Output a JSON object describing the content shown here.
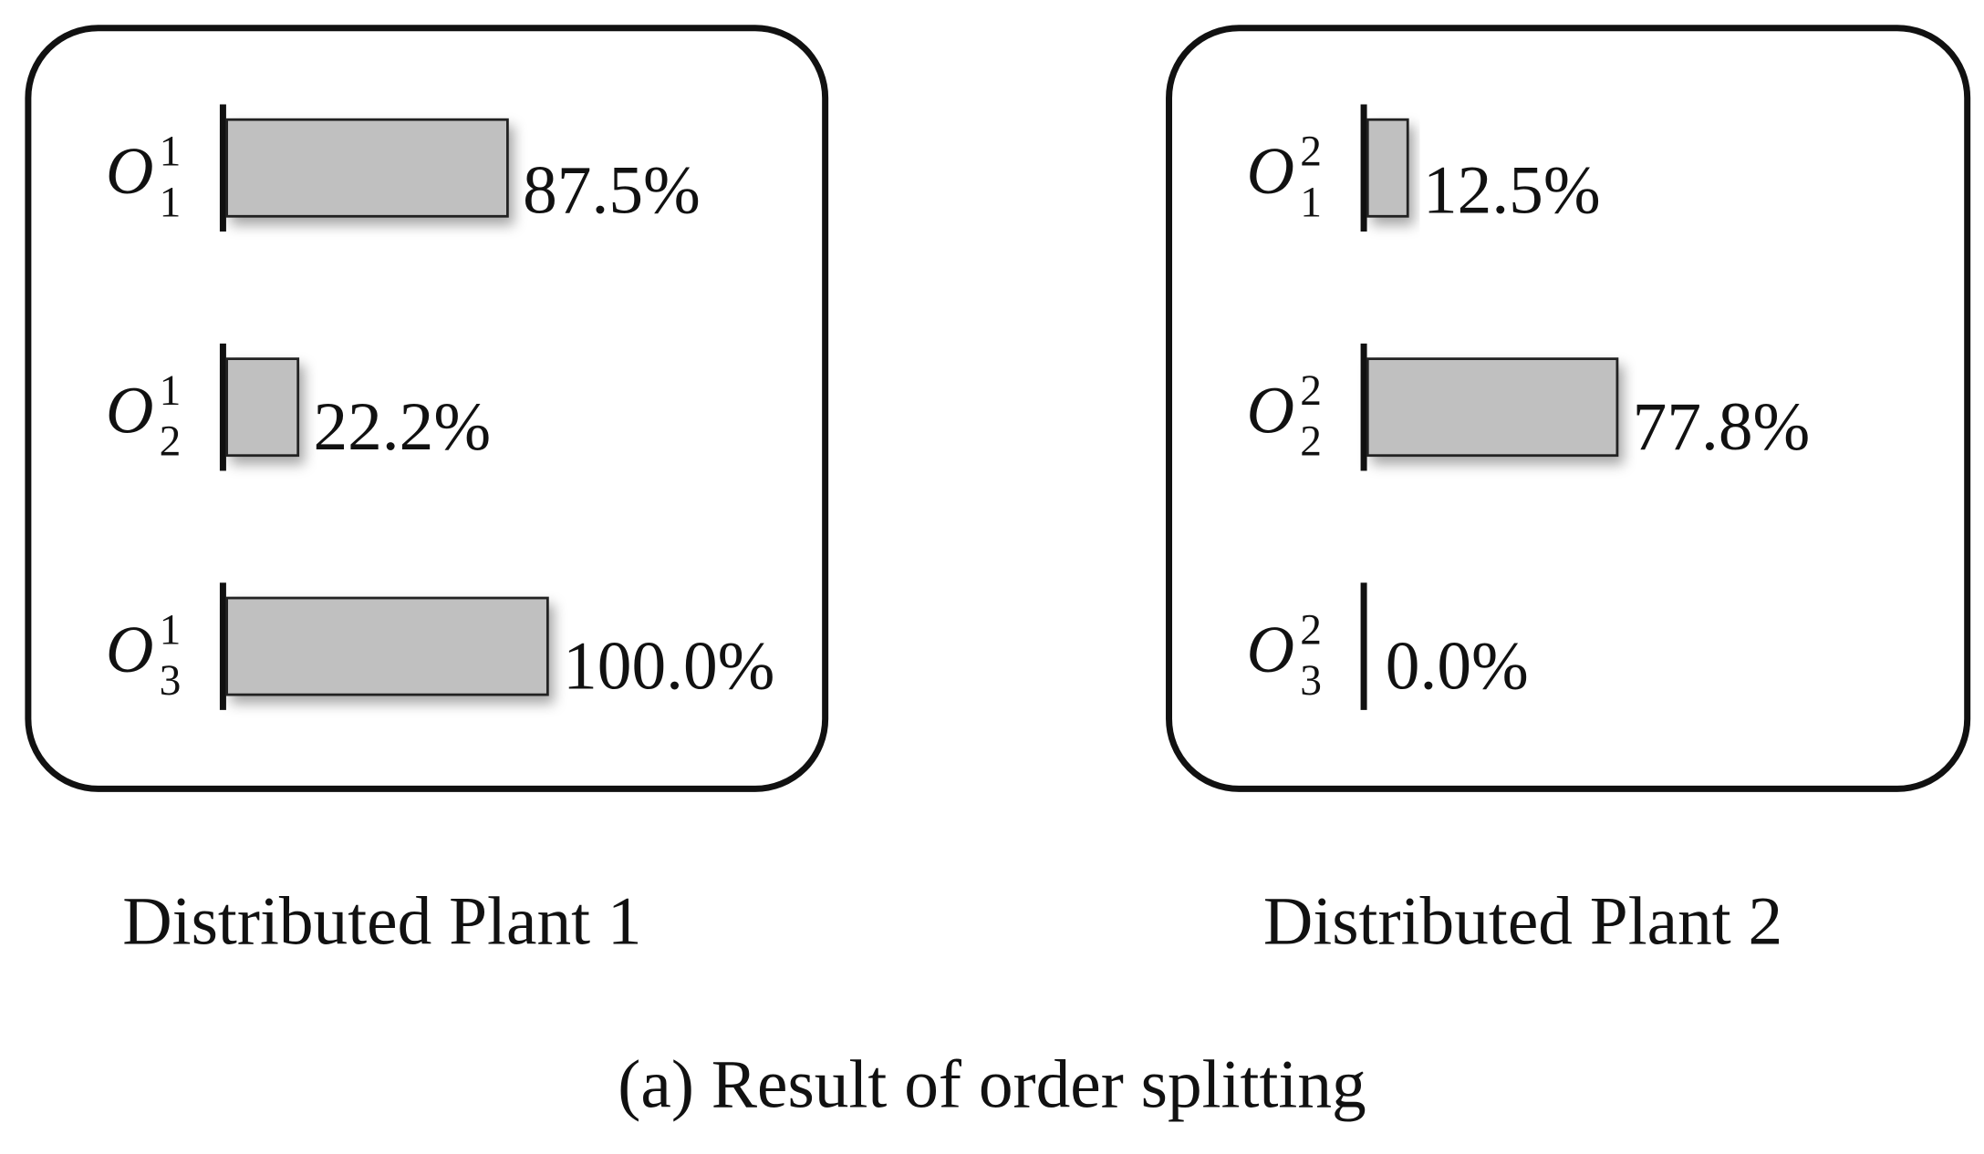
{
  "chart_data": [
    {
      "type": "bar",
      "title": "Distributed Plant 1",
      "categories": [
        {
          "base": "O",
          "sup": "1",
          "sub": "1"
        },
        {
          "base": "O",
          "sup": "1",
          "sub": "2"
        },
        {
          "base": "O",
          "sup": "1",
          "sub": "3"
        }
      ],
      "values": [
        87.5,
        22.2,
        100.0
      ],
      "value_labels": [
        "87.5%",
        "22.2%",
        "100.0%"
      ],
      "color": "#c0c0c0",
      "xlim": [
        0,
        100
      ]
    },
    {
      "type": "bar",
      "title": "Distributed Plant 2",
      "categories": [
        {
          "base": "O",
          "sup": "2",
          "sub": "1"
        },
        {
          "base": "O",
          "sup": "2",
          "sub": "2"
        },
        {
          "base": "O",
          "sup": "2",
          "sub": "3"
        }
      ],
      "values": [
        12.5,
        77.8,
        0.0
      ],
      "value_labels": [
        "12.5%",
        "77.8%",
        "0.0%"
      ],
      "color": "#c0c0c0",
      "xlim": [
        0,
        100
      ]
    }
  ],
  "caption": "(a) Result of order splitting"
}
